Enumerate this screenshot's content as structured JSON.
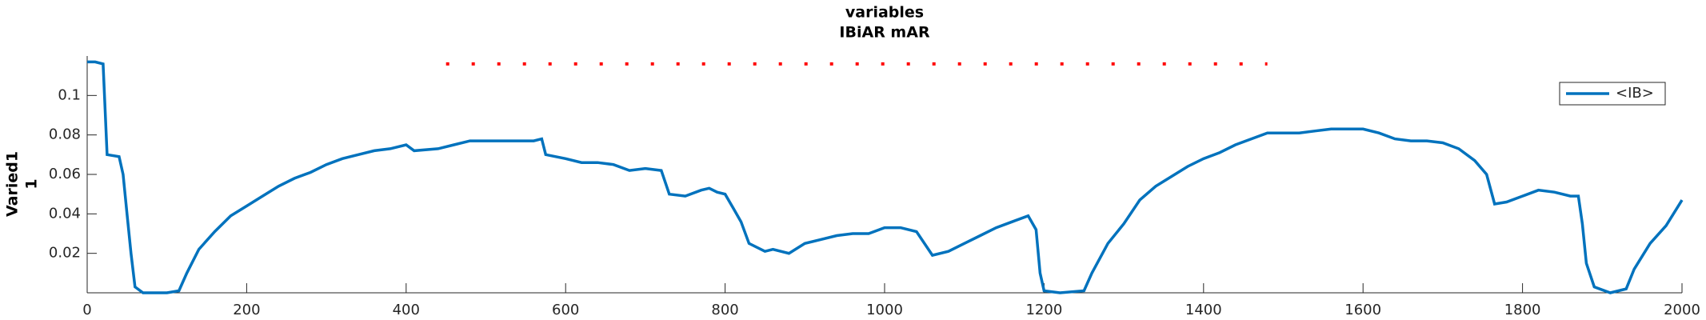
{
  "chart_data": {
    "type": "line",
    "title": [
      "variables",
      "IBiAR mAR"
    ],
    "ylabel": [
      "Varied1",
      "1"
    ],
    "xlim": [
      0,
      2000
    ],
    "xticks": [
      0,
      200,
      400,
      600,
      800,
      1000,
      1200,
      1400,
      1600,
      1800,
      2000
    ],
    "ylim": [
      0,
      0.12
    ],
    "yticks": [
      0.02,
      0.04,
      0.06,
      0.08,
      0.1
    ],
    "legend": "upper right",
    "series": [
      {
        "name": "<IB>",
        "color": "#0072bd",
        "style": "solid",
        "x": [
          0,
          10,
          20,
          25,
          40,
          45,
          50,
          55,
          60,
          70,
          100,
          115,
          125,
          140,
          160,
          180,
          200,
          220,
          240,
          260,
          280,
          300,
          320,
          340,
          360,
          380,
          400,
          410,
          440,
          460,
          480,
          500,
          520,
          540,
          560,
          570,
          575,
          600,
          620,
          640,
          660,
          680,
          700,
          720,
          730,
          750,
          770,
          780,
          790,
          800,
          810,
          820,
          830,
          850,
          860,
          880,
          900,
          920,
          940,
          960,
          980,
          1000,
          1020,
          1040,
          1060,
          1080,
          1100,
          1120,
          1140,
          1160,
          1180,
          1190,
          1195,
          1200,
          1220,
          1250,
          1260,
          1280,
          1300,
          1320,
          1340,
          1360,
          1380,
          1400,
          1420,
          1440,
          1460,
          1480,
          1500,
          1520,
          1540,
          1560,
          1580,
          1600,
          1620,
          1640,
          1660,
          1680,
          1700,
          1720,
          1740,
          1755,
          1765,
          1780,
          1800,
          1820,
          1840,
          1860,
          1870,
          1875,
          1880,
          1890,
          1910,
          1930,
          1940,
          1960,
          1980,
          2000
        ],
        "values": [
          0.117,
          0.117,
          0.116,
          0.07,
          0.069,
          0.06,
          0.04,
          0.02,
          0.003,
          0,
          0,
          0.001,
          0.01,
          0.022,
          0.031,
          0.039,
          0.044,
          0.049,
          0.054,
          0.058,
          0.061,
          0.065,
          0.068,
          0.07,
          0.072,
          0.073,
          0.075,
          0.072,
          0.073,
          0.075,
          0.077,
          0.077,
          0.077,
          0.077,
          0.077,
          0.078,
          0.07,
          0.068,
          0.066,
          0.066,
          0.065,
          0.062,
          0.063,
          0.062,
          0.05,
          0.049,
          0.052,
          0.053,
          0.051,
          0.05,
          0.043,
          0.036,
          0.025,
          0.021,
          0.022,
          0.02,
          0.025,
          0.027,
          0.029,
          0.03,
          0.03,
          0.033,
          0.033,
          0.031,
          0.019,
          0.021,
          0.025,
          0.029,
          0.033,
          0.036,
          0.039,
          0.032,
          0.01,
          0.001,
          0,
          0.001,
          0.01,
          0.025,
          0.035,
          0.047,
          0.054,
          0.059,
          0.064,
          0.068,
          0.071,
          0.075,
          0.078,
          0.081,
          0.081,
          0.081,
          0.082,
          0.083,
          0.083,
          0.083,
          0.081,
          0.078,
          0.077,
          0.077,
          0.076,
          0.073,
          0.067,
          0.06,
          0.045,
          0.046,
          0.049,
          0.052,
          0.051,
          0.049,
          0.049,
          0.035,
          0.015,
          0.003,
          0,
          0.002,
          0.012,
          0.025,
          0.034,
          0.047
        ]
      },
      {
        "color": "#ff0000",
        "style": "dotted",
        "x": [
          450,
          1480
        ],
        "values": [
          0.116,
          0.116
        ]
      }
    ]
  }
}
